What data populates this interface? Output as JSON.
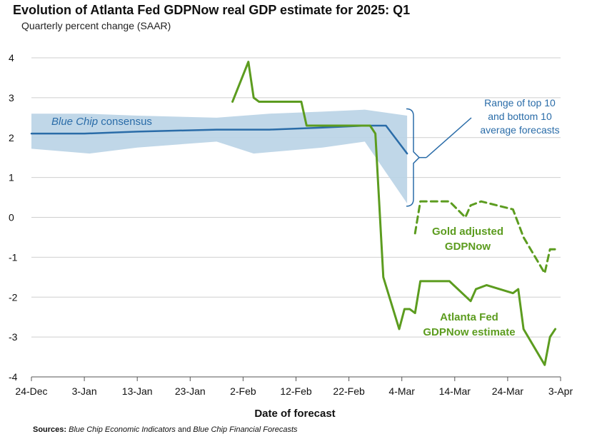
{
  "chart_data": {
    "type": "line",
    "title": "Evolution of Atlanta Fed GDPNow real GDP estimate for 2025: Q1",
    "subtitle": "Quarterly percent change (SAAR)",
    "xlabel": "Date of forecast",
    "ylabel": "",
    "ylim": [
      -4,
      4
    ],
    "xlim_days": [
      0,
      100
    ],
    "x_ticks": [
      {
        "day": 0,
        "label": "24-Dec"
      },
      {
        "day": 10,
        "label": "3-Jan"
      },
      {
        "day": 20,
        "label": "13-Jan"
      },
      {
        "day": 30,
        "label": "23-Jan"
      },
      {
        "day": 40,
        "label": "2-Feb"
      },
      {
        "day": 50,
        "label": "12-Feb"
      },
      {
        "day": 60,
        "label": "22-Feb"
      },
      {
        "day": 70,
        "label": "4-Mar"
      },
      {
        "day": 80,
        "label": "14-Mar"
      },
      {
        "day": 90,
        "label": "24-Mar"
      },
      {
        "day": 100,
        "label": "3-Apr"
      }
    ],
    "y_ticks": [
      4,
      3,
      2,
      1,
      0,
      -1,
      -2,
      -3,
      -4
    ],
    "grid": true,
    "colors": {
      "blue": "#2a6ca8",
      "band": "#b9d3e6",
      "green": "#5c9c1f",
      "grid": "#cfcfcf"
    },
    "series": [
      {
        "name": "Blue Chip consensus",
        "style": "solid",
        "points": [
          [
            0,
            2.1
          ],
          [
            10,
            2.1
          ],
          [
            20,
            2.15
          ],
          [
            35,
            2.2
          ],
          [
            45,
            2.2
          ],
          [
            55,
            2.25
          ],
          [
            63,
            2.3
          ],
          [
            67,
            2.3
          ],
          [
            71,
            1.6
          ]
        ]
      },
      {
        "name": "Range of top 10 and bottom 10 average forecasts",
        "type": "band",
        "upper": [
          [
            0,
            2.6
          ],
          [
            10,
            2.6
          ],
          [
            20,
            2.55
          ],
          [
            35,
            2.5
          ],
          [
            45,
            2.6
          ],
          [
            55,
            2.65
          ],
          [
            63,
            2.7
          ],
          [
            71,
            2.55
          ]
        ],
        "lower": [
          [
            0,
            1.72
          ],
          [
            11,
            1.6
          ],
          [
            20,
            1.75
          ],
          [
            35,
            1.9
          ],
          [
            42,
            1.6
          ],
          [
            55,
            1.75
          ],
          [
            63,
            1.9
          ],
          [
            71,
            0.35
          ]
        ]
      },
      {
        "name": "Atlanta Fed GDPNow estimate",
        "style": "solid",
        "points": [
          [
            38,
            2.9
          ],
          [
            41,
            3.9
          ],
          [
            42,
            3.0
          ],
          [
            43,
            2.9
          ],
          [
            51,
            2.9
          ],
          [
            52,
            2.3
          ],
          [
            64,
            2.3
          ],
          [
            65,
            2.1
          ],
          [
            66.5,
            -1.5
          ],
          [
            69.5,
            -2.8
          ],
          [
            70.5,
            -2.3
          ],
          [
            71.5,
            -2.3
          ],
          [
            72.5,
            -2.4
          ],
          [
            73.5,
            -1.6
          ],
          [
            79,
            -1.6
          ],
          [
            83,
            -2.1
          ],
          [
            84,
            -1.8
          ],
          [
            86,
            -1.7
          ],
          [
            91,
            -1.9
          ],
          [
            92,
            -1.8
          ],
          [
            93,
            -2.8
          ],
          [
            97,
            -3.7
          ],
          [
            98,
            -3.0
          ],
          [
            99,
            -2.8
          ]
        ]
      },
      {
        "name": "Gold adjusted GDPNow",
        "style": "dashed",
        "points": [
          [
            72.5,
            -0.4
          ],
          [
            73.5,
            0.4
          ],
          [
            79,
            0.4
          ],
          [
            82,
            0.0
          ],
          [
            83,
            0.3
          ],
          [
            85,
            0.4
          ],
          [
            88,
            0.3
          ],
          [
            91,
            0.2
          ],
          [
            93,
            -0.5
          ],
          [
            97,
            -1.4
          ],
          [
            98,
            -0.8
          ],
          [
            99,
            -0.8
          ]
        ]
      }
    ],
    "annotations": {
      "blue_chip": {
        "italic": "Blue Chip",
        "rest": " consensus"
      },
      "range": [
        "Range of top 10",
        "and bottom 10",
        "average forecasts"
      ],
      "gold": [
        "Gold adjusted",
        "GDPNow"
      ],
      "atlanta": [
        "Atlanta Fed",
        "GDPNow estimate"
      ]
    }
  },
  "source": {
    "label": "Sources:",
    "publication_1": "Blue Chip Economic Indicators",
    "conjunction": " and ",
    "publication_2": "Blue Chip Financial Forecasts"
  }
}
